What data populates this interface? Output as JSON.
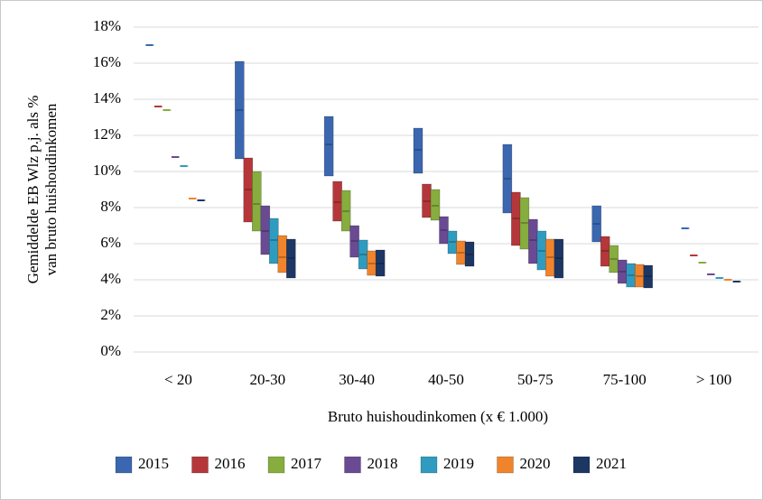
{
  "chart_data": {
    "type": "range-bar",
    "y_label": [
      "Gemiddelde EB Wlz p.j. als %",
      "van bruto huishoudinkomen"
    ],
    "x_label": "Bruto huishoudinkomen (x € 1.000)",
    "categories": [
      "< 20",
      "20-30",
      "30-40",
      "40-50",
      "50-75",
      "75-100",
      "> 100"
    ],
    "ylim": [
      0,
      18
    ],
    "yticks": [
      {
        "value": 0,
        "label": "0%"
      },
      {
        "value": 2,
        "label": "2%"
      },
      {
        "value": 4,
        "label": "4%"
      },
      {
        "value": 6,
        "label": "6%"
      },
      {
        "value": 8,
        "label": "8%"
      },
      {
        "value": 10,
        "label": "10%"
      },
      {
        "value": 12,
        "label": "12%"
      },
      {
        "value": 14,
        "label": "14%"
      },
      {
        "value": 16,
        "label": "16%"
      },
      {
        "value": 18,
        "label": "18%"
      }
    ],
    "grid": true,
    "legend": "bottom",
    "series": [
      {
        "name": "2015",
        "color": "#3a67b0",
        "low": [
          17.0,
          10.7,
          9.75,
          9.9,
          7.7,
          6.1,
          6.85
        ],
        "mid": [
          17.0,
          13.4,
          11.5,
          11.2,
          9.6,
          7.1,
          6.85
        ],
        "high": [
          17.0,
          16.1,
          13.05,
          12.4,
          11.5,
          8.1,
          6.85
        ]
      },
      {
        "name": "2016",
        "color": "#b5373a",
        "low": [
          13.6,
          7.2,
          7.25,
          7.45,
          5.9,
          4.75,
          5.35
        ],
        "mid": [
          13.6,
          9.0,
          8.3,
          8.35,
          7.4,
          5.6,
          5.35
        ],
        "high": [
          13.6,
          10.75,
          9.45,
          9.3,
          8.85,
          6.4,
          5.35
        ]
      },
      {
        "name": "2017",
        "color": "#86ad3e",
        "low": [
          13.4,
          6.7,
          6.7,
          7.3,
          5.7,
          4.4,
          4.95
        ],
        "mid": [
          13.4,
          8.2,
          7.8,
          8.1,
          7.15,
          5.15,
          4.95
        ],
        "high": [
          13.4,
          10.0,
          8.95,
          9.0,
          8.55,
          5.9,
          4.95
        ]
      },
      {
        "name": "2018",
        "color": "#6a4a93",
        "low": [
          10.8,
          5.4,
          5.25,
          6.0,
          4.9,
          3.8,
          4.3
        ],
        "mid": [
          10.8,
          6.7,
          6.15,
          6.75,
          6.2,
          4.45,
          4.3
        ],
        "high": [
          10.8,
          8.1,
          7.0,
          7.5,
          7.35,
          5.1,
          4.3
        ]
      },
      {
        "name": "2019",
        "color": "#2f9cbf",
        "low": [
          10.3,
          4.9,
          4.6,
          5.45,
          4.55,
          3.6,
          4.1
        ],
        "mid": [
          10.3,
          6.2,
          5.4,
          6.1,
          5.6,
          4.25,
          4.1
        ],
        "high": [
          10.3,
          7.4,
          6.2,
          6.7,
          6.7,
          4.9,
          4.1
        ]
      },
      {
        "name": "2020",
        "color": "#f0842c",
        "low": [
          8.5,
          4.4,
          4.25,
          4.85,
          4.2,
          3.6,
          4.0
        ],
        "mid": [
          8.5,
          5.25,
          4.9,
          5.5,
          5.25,
          4.2,
          4.0
        ],
        "high": [
          8.5,
          6.45,
          5.6,
          6.15,
          6.25,
          4.85,
          4.0
        ]
      },
      {
        "name": "2021",
        "color": "#1c3764",
        "low": [
          8.4,
          4.1,
          4.2,
          4.75,
          4.1,
          3.55,
          3.9
        ],
        "mid": [
          8.4,
          5.2,
          4.9,
          5.4,
          5.2,
          4.2,
          3.9
        ],
        "high": [
          8.4,
          6.25,
          5.65,
          6.1,
          6.25,
          4.8,
          3.9
        ]
      }
    ]
  }
}
